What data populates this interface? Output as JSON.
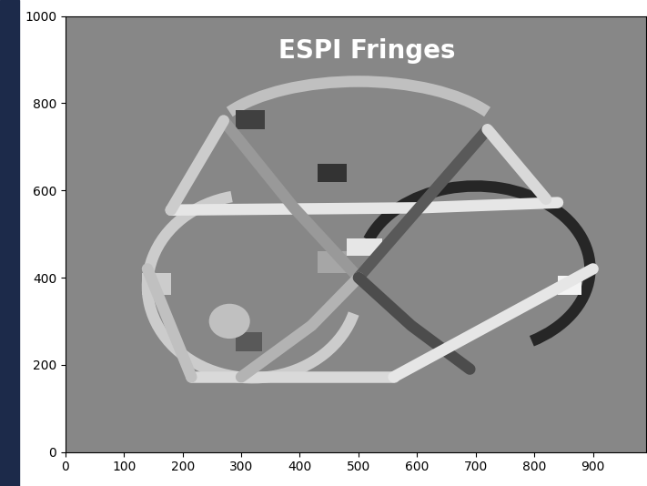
{
  "chart_data": {
    "type": "image",
    "title": "ESPI Fringes",
    "xlim": [
      0,
      990
    ],
    "xticks": [
      0,
      100,
      200,
      300,
      400,
      500,
      600,
      700,
      800,
      900
    ],
    "ylim": [
      0,
      1000
    ],
    "yticks": [
      0,
      200,
      400,
      600,
      800,
      1000
    ],
    "background": 0.53,
    "grid": false,
    "paths": [
      {
        "points": [
          [
            215,
            172
          ],
          [
            560,
            172
          ]
        ],
        "level": 0.85
      },
      {
        "points": [
          [
            180,
            555
          ],
          [
            600,
            560
          ],
          [
            840,
            572
          ]
        ],
        "level": 0.9
      },
      {
        "points": [
          [
            270,
            760
          ],
          [
            390,
            560
          ],
          [
            500,
            400
          ]
        ],
        "level": 0.6
      },
      {
        "points": [
          [
            500,
            400
          ],
          [
            610,
            570
          ],
          [
            720,
            740
          ]
        ],
        "level": 0.35
      },
      {
        "points": [
          [
            500,
            400
          ],
          [
            420,
            290
          ],
          [
            300,
            172
          ]
        ],
        "level": 0.7
      },
      {
        "points": [
          [
            500,
            400
          ],
          [
            590,
            290
          ],
          [
            690,
            190
          ]
        ],
        "level": 0.3
      },
      {
        "points": [
          [
            270,
            760
          ],
          [
            180,
            555
          ]
        ],
        "level": 0.8
      },
      {
        "points": [
          [
            720,
            740
          ],
          [
            820,
            580
          ]
        ],
        "level": 0.85
      },
      {
        "points": [
          [
            560,
            172
          ],
          [
            900,
            420
          ]
        ],
        "level": 0.9
      },
      {
        "points": [
          [
            140,
            420
          ],
          [
            215,
            172
          ]
        ],
        "level": 0.75
      }
    ],
    "arcs": [
      {
        "center": [
          320,
          380
        ],
        "width": 360,
        "height": 420,
        "theta1": 100,
        "theta2": 340,
        "level": 0.8
      },
      {
        "center": [
          700,
          420
        ],
        "width": 390,
        "height": 380,
        "theta1": -60,
        "theta2": 160,
        "level": 0.15
      },
      {
        "center": [
          500,
          700
        ],
        "width": 520,
        "height": 300,
        "theta1": 20,
        "theta2": 160,
        "level": 0.75
      }
    ],
    "patches": [
      {
        "x": 130,
        "y": 360,
        "width": 50,
        "height": 50,
        "level": 0.8
      },
      {
        "x": 840,
        "y": 360,
        "width": 40,
        "height": 45,
        "level": 0.95
      },
      {
        "x": 290,
        "y": 230,
        "width": 45,
        "height": 45,
        "level": 0.35
      },
      {
        "x": 480,
        "y": 450,
        "width": 60,
        "height": 40,
        "level": 0.9
      },
      {
        "x": 430,
        "y": 620,
        "width": 50,
        "height": 40,
        "level": 0.2
      },
      {
        "x": 290,
        "y": 740,
        "width": 50,
        "height": 45,
        "level": 0.25
      },
      {
        "x": 430,
        "y": 410,
        "width": 50,
        "height": 50,
        "level": 0.65
      }
    ],
    "spots": [
      {
        "center": [
          280,
          300
        ],
        "width": 70,
        "height": 80,
        "level": 0.75
      }
    ]
  }
}
